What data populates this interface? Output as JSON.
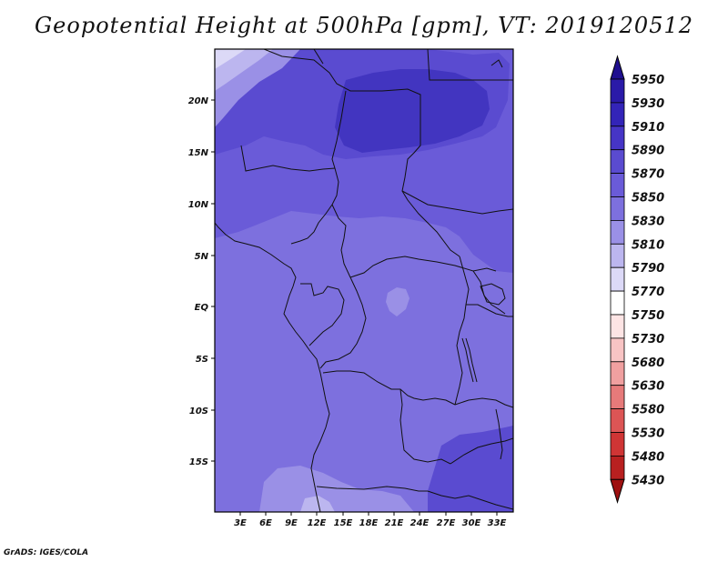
{
  "title": "Geopotential Height at 500hPa [gpm], VT: 2019120512",
  "credit": "GrADS: IGES/COLA",
  "map": {
    "lat_labels": [
      "20N",
      "15N",
      "10N",
      "5N",
      "EQ",
      "5S",
      "10S",
      "15S"
    ],
    "lon_labels": [
      "3E",
      "6E",
      "9E",
      "12E",
      "15E",
      "18E",
      "21E",
      "24E",
      "27E",
      "30E",
      "33E"
    ]
  },
  "colorbar": {
    "levels": [
      "5950",
      "5930",
      "5910",
      "5890",
      "5870",
      "5850",
      "5830",
      "5810",
      "5790",
      "5770",
      "5750",
      "5730",
      "5680",
      "5630",
      "5580",
      "5530",
      "5480",
      "5430"
    ],
    "colors": [
      "#1f0f8f",
      "#2a1aa8",
      "#3324b8",
      "#4635c6",
      "#5a4bd0",
      "#6a5bd8",
      "#7d70de",
      "#9a90e6",
      "#bcb6ef",
      "#dcd9f7",
      "#ffffff",
      "#fde4e4",
      "#f8c4c4",
      "#f0a0a0",
      "#e67a7a",
      "#dc5555",
      "#cf3535",
      "#b82020",
      "#9e1010"
    ]
  },
  "colors": {
    "deep": "#3f33c4",
    "c5890": "#5a4bd0",
    "c5870": "#6a5bd8",
    "c5850": "#7d70de",
    "c5830": "#9a90e6",
    "c5810": "#bcb6ef",
    "c5790": "#dcd9f7"
  }
}
